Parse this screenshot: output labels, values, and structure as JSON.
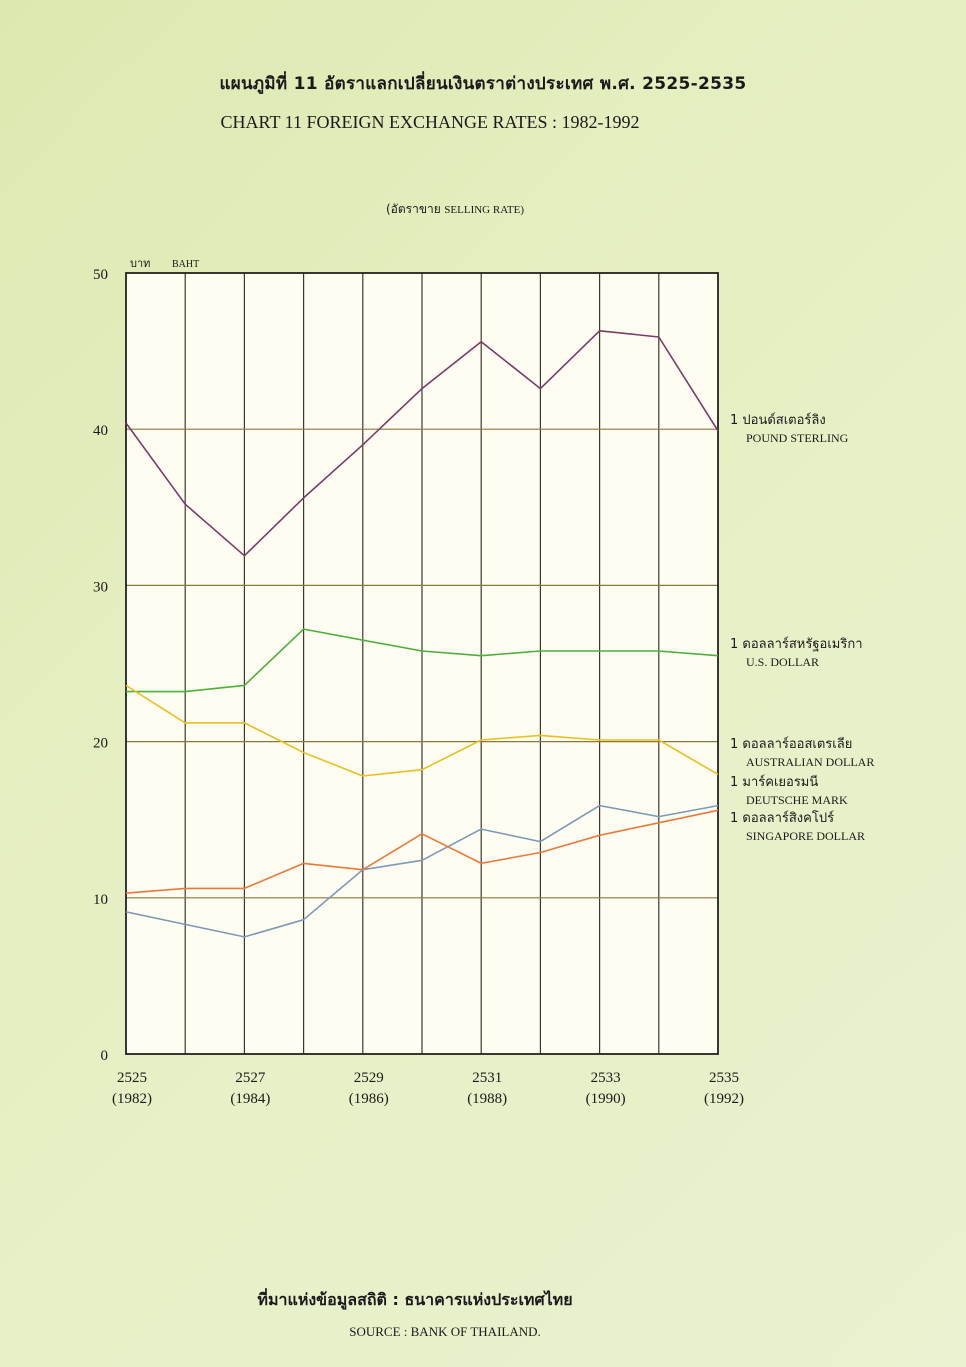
{
  "header": {
    "title_th": "แผนภูมิที่ 11 อัตราแลกเปลี่ยนเงินตราต่างประเทศ พ.ศ. 2525-2535",
    "title_en": "CHART 11 FOREIGN EXCHANGE RATES : 1982-1992",
    "subtitle_th": "(อัตราขาย",
    "subtitle_en": "SELLING RATE)"
  },
  "footer": {
    "source_th": "ที่มาแห่งข้อมูลสถิติ : ธนาคารแห่งประเทศไทย",
    "source_en": "SOURCE : BANK OF THAILAND."
  },
  "chart_data": {
    "type": "line",
    "ylabel_th": "บาท",
    "ylabel_en": "BAHT",
    "ylim": [
      0,
      50
    ],
    "yticks": [
      0,
      10,
      20,
      30,
      40,
      50
    ],
    "grid": true,
    "x": [
      2525,
      2526,
      2527,
      2528,
      2529,
      2530,
      2531,
      2532,
      2533,
      2534,
      2535
    ],
    "x_tick_labels": [
      {
        "year": "2525",
        "ad": "(1982)",
        "i": 0
      },
      {
        "year": "2527",
        "ad": "(1984)",
        "i": 2
      },
      {
        "year": "2529",
        "ad": "(1986)",
        "i": 4
      },
      {
        "year": "2531",
        "ad": "(1988)",
        "i": 6
      },
      {
        "year": "2533",
        "ad": "(1990)",
        "i": 8
      },
      {
        "year": "2535",
        "ad": "(1992)",
        "i": 10
      }
    ],
    "legend_placement": "right",
    "series": [
      {
        "legend_th": "1 ปอนด์สเตอร์ลิง",
        "legend_en": "POUND STERLING",
        "color": "#7a3a6a",
        "values": [
          40.4,
          35.2,
          31.9,
          35.6,
          39.0,
          42.6,
          45.6,
          42.6,
          46.3,
          45.9,
          39.9
        ]
      },
      {
        "legend_th": "1 ดอลลาร์สหรัฐอเมริกา",
        "legend_en": "U.S. DOLLAR",
        "color": "#4caf3a",
        "values": [
          23.2,
          23.2,
          23.6,
          27.2,
          26.5,
          25.8,
          25.5,
          25.8,
          25.8,
          25.8,
          25.5
        ]
      },
      {
        "legend_th": "1 ดอลลาร์ออสเตรเลีย",
        "legend_en": "AUSTRALIAN DOLLAR",
        "color": "#e8c020",
        "values": [
          23.6,
          21.2,
          21.2,
          19.3,
          17.8,
          18.2,
          20.1,
          20.4,
          20.1,
          20.1,
          17.9
        ]
      },
      {
        "legend_th": "1 มาร์คเยอรมนี",
        "legend_en": "DEUTSCHE MARK",
        "color": "#7a9ab8",
        "values": [
          9.1,
          8.3,
          7.5,
          8.6,
          11.8,
          12.4,
          14.4,
          13.6,
          15.9,
          15.2,
          15.9
        ]
      },
      {
        "legend_th": "1 ดอลลาร์สิงคโปร์",
        "legend_en": "SINGAPORE DOLLAR",
        "color": "#e87a3a",
        "values": [
          10.3,
          10.6,
          10.6,
          12.2,
          11.8,
          14.1,
          12.2,
          12.9,
          14.0,
          14.8,
          15.6
        ]
      }
    ]
  }
}
